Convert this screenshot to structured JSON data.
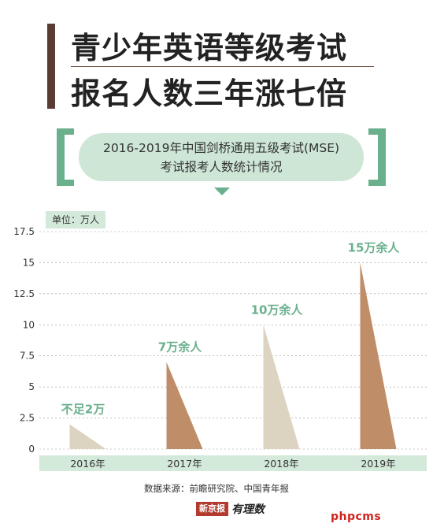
{
  "header": {
    "title_line1": "青少年英语等级考试",
    "title_line2": "报名人数三年涨七倍"
  },
  "subtitle": {
    "line1": "2016-2019年中国剑桥通用五级考试(MSE)",
    "line2": "考试报考人数统计情况"
  },
  "unit_label": "单位：万人",
  "footer": {
    "source": "数据来源：前瞻研究院、中国青年报",
    "logo_text": "新京报",
    "logo_script": "有理数"
  },
  "watermark": "phpcms",
  "colors": {
    "bar_light": "#dcd3c0",
    "bar_dark": "#bf8d68",
    "green": "#6bb08d",
    "green_light": "#d3e9da",
    "label_green": "#6bb08d"
  },
  "chart_data": {
    "type": "bar",
    "categories": [
      "2016年",
      "2017年",
      "2018年",
      "2019年"
    ],
    "values": [
      2,
      7,
      10,
      15
    ],
    "data_labels": [
      "不足2万",
      "7万余人",
      "10万余人",
      "15万余人"
    ],
    "bar_colors": [
      "#dcd3c0",
      "#bf8d68",
      "#dcd3c0",
      "#bf8d68"
    ],
    "y_ticks": [
      "0",
      "2.5",
      "5",
      "7.5",
      "10",
      "12.5",
      "15",
      "17.5"
    ],
    "ylim": [
      0,
      17.5
    ],
    "unit": "万人",
    "grid": true,
    "bar_shape": "right-triangle"
  }
}
